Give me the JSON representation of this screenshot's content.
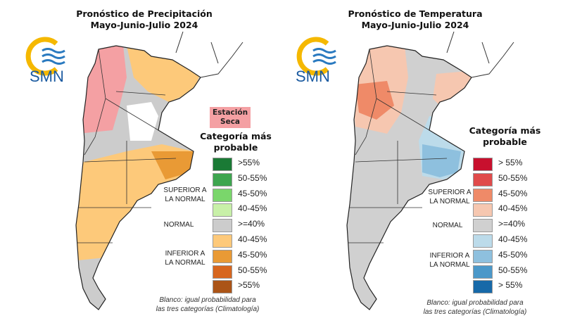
{
  "left": {
    "title_line1": "Pronóstico de Precipitación",
    "title_line2": "Mayo-Junio-Julio 2024",
    "logo_text": "SMN",
    "dry_season_label_1": "Estación",
    "dry_season_label_2": "Seca",
    "category_head_1": "Categoría más",
    "category_head_2": "probable",
    "group_above_1": "SUPERIOR A",
    "group_above_2": "LA NORMAL",
    "group_normal": "NORMAL",
    "group_below_1": "INFERIOR A",
    "group_below_2": "LA NORMAL",
    "legend": [
      {
        "label": ">55%",
        "color": "#1a7a35"
      },
      {
        "label": "50-55%",
        "color": "#3ea54f"
      },
      {
        "label": "45-50%",
        "color": "#7ad66b"
      },
      {
        "label": "40-45%",
        "color": "#c8f0a8"
      },
      {
        "label": ">=40%",
        "color": "#cccccc"
      },
      {
        "label": "40-45%",
        "color": "#fdc97a"
      },
      {
        "label": "45-50%",
        "color": "#e99a35"
      },
      {
        "label": "50-55%",
        "color": "#d7661e"
      },
      {
        "label": ">55%",
        "color": "#ab5417"
      }
    ],
    "note_1": "Blanco: igual probabilidad para",
    "note_2": "las tres categorías (Climatología)"
  },
  "right": {
    "title_line1": "Pronóstico de Temperatura",
    "title_line2": "Mayo-Junio-Julio 2024",
    "logo_text": "SMN",
    "category_head_1": "Categoría más",
    "category_head_2": "probable",
    "group_above_1": "SUPERIOR A",
    "group_above_2": "LA NORMAL",
    "group_normal": "NORMAL",
    "group_below_1": "INFERIOR A",
    "group_below_2": "LA NORMAL",
    "legend": [
      {
        "label": "> 55%",
        "color": "#c8102e"
      },
      {
        "label": "50-55%",
        "color": "#e04b4b"
      },
      {
        "label": "45-50%",
        "color": "#ef8a68"
      },
      {
        "label": "40-45%",
        "color": "#f6c7b0"
      },
      {
        "label": ">=40%",
        "color": "#d0d0d0"
      },
      {
        "label": "40-45%",
        "color": "#bcdbea"
      },
      {
        "label": "45-50%",
        "color": "#8ec0de"
      },
      {
        "label": "50-55%",
        "color": "#4b98c9"
      },
      {
        "label": "> 55%",
        "color": "#1769a8"
      }
    ],
    "note_1": "Blanco: igual probabilidad para",
    "note_2": "las tres categorías (Climatología)"
  }
}
